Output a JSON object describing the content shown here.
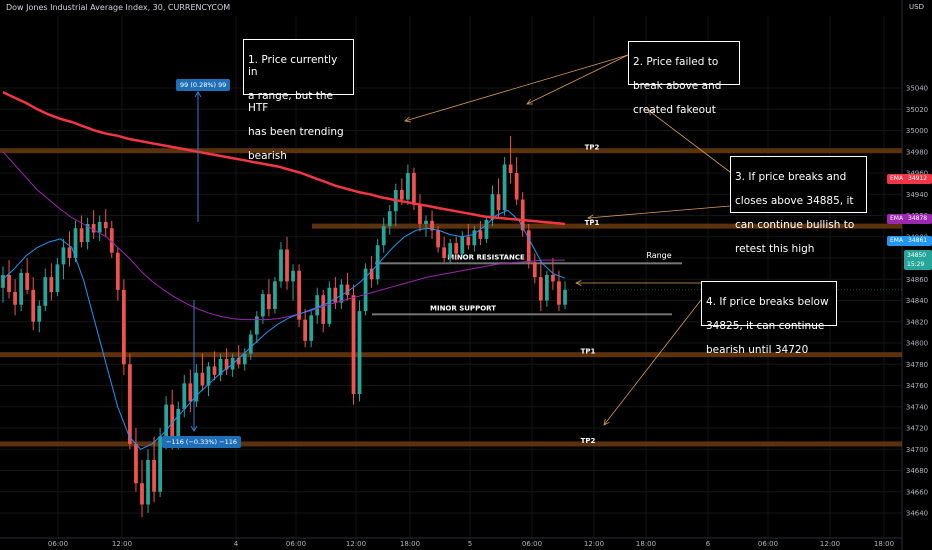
{
  "header": {
    "title": "Dow Jones Industrial Average Index, 30, CURRENCYCOM",
    "currency": "USD"
  },
  "chart_data": {
    "type": "candlestick",
    "y_axis": {
      "range": [
        34625,
        35055
      ],
      "ticks": [
        35040,
        35020,
        35000,
        34980,
        34960,
        34940,
        34920,
        34900,
        34880,
        34860,
        34840,
        34820,
        34800,
        34780,
        34760,
        34740,
        34720,
        34700,
        34680,
        34660,
        34640
      ]
    },
    "x_axis": {
      "labels": [
        "06:00",
        "12:00",
        "4",
        "06:00",
        "12:00",
        "18:00",
        "5",
        "06:00",
        "12:00",
        "18:00",
        "6",
        "06:00",
        "12:00",
        "18:00"
      ]
    },
    "levels": [
      {
        "name": "TP2",
        "value": 34981,
        "kind": "target"
      },
      {
        "name": "TP1",
        "value": 34910,
        "kind": "target"
      },
      {
        "name": "MINOR RESISTANCE",
        "value": 34875,
        "kind": "resistance"
      },
      {
        "name": "MINOR SUPPORT",
        "value": 34827,
        "kind": "support"
      },
      {
        "name": "TP1",
        "value": 34789,
        "kind": "target"
      },
      {
        "name": "TP2",
        "value": 34705,
        "kind": "target"
      }
    ],
    "range_label": "Range",
    "indicators": [
      {
        "name": "EMA",
        "value": "34912",
        "color": "#f23645"
      },
      {
        "name": "EMA",
        "value": "34878",
        "color": "#9c27b0"
      },
      {
        "name": "EMA",
        "value": "34861",
        "color": "#2196f3"
      }
    ],
    "last_price": {
      "value": "34850",
      "time": "15:29",
      "color": "#26a69a"
    },
    "measures": [
      {
        "text": "99 (0.28%) 99"
      },
      {
        "text": "−116 (−0.33%) −116"
      }
    ],
    "candles": [
      {
        "o": 34852,
        "h": 34872,
        "l": 34838,
        "c": 34864
      },
      {
        "o": 34864,
        "h": 34878,
        "l": 34842,
        "c": 34848
      },
      {
        "o": 34848,
        "h": 34860,
        "l": 34826,
        "c": 34836
      },
      {
        "o": 34836,
        "h": 34870,
        "l": 34830,
        "c": 34866
      },
      {
        "o": 34866,
        "h": 34880,
        "l": 34846,
        "c": 34850
      },
      {
        "o": 34850,
        "h": 34862,
        "l": 34812,
        "c": 34820
      },
      {
        "o": 34820,
        "h": 34840,
        "l": 34810,
        "c": 34835
      },
      {
        "o": 34835,
        "h": 34870,
        "l": 34830,
        "c": 34862
      },
      {
        "o": 34862,
        "h": 34875,
        "l": 34840,
        "c": 34848
      },
      {
        "o": 34848,
        "h": 34880,
        "l": 34844,
        "c": 34874
      },
      {
        "o": 34874,
        "h": 34898,
        "l": 34860,
        "c": 34890
      },
      {
        "o": 34890,
        "h": 34905,
        "l": 34872,
        "c": 34880
      },
      {
        "o": 34880,
        "h": 34915,
        "l": 34876,
        "c": 34908
      },
      {
        "o": 34908,
        "h": 34920,
        "l": 34890,
        "c": 34895
      },
      {
        "o": 34895,
        "h": 34918,
        "l": 34888,
        "c": 34912
      },
      {
        "o": 34912,
        "h": 34925,
        "l": 34898,
        "c": 34904
      },
      {
        "o": 34904,
        "h": 34920,
        "l": 34896,
        "c": 34914
      },
      {
        "o": 34914,
        "h": 34926,
        "l": 34900,
        "c": 34908
      },
      {
        "o": 34908,
        "h": 34915,
        "l": 34880,
        "c": 34885
      },
      {
        "o": 34885,
        "h": 34890,
        "l": 34840,
        "c": 34850
      },
      {
        "o": 34850,
        "h": 34860,
        "l": 34770,
        "c": 34780
      },
      {
        "o": 34780,
        "h": 34790,
        "l": 34700,
        "c": 34705
      },
      {
        "o": 34705,
        "h": 34720,
        "l": 34660,
        "c": 34668
      },
      {
        "o": 34668,
        "h": 34690,
        "l": 34636,
        "c": 34648
      },
      {
        "o": 34648,
        "h": 34700,
        "l": 34640,
        "c": 34690
      },
      {
        "o": 34690,
        "h": 34712,
        "l": 34650,
        "c": 34660
      },
      {
        "o": 34660,
        "h": 34720,
        "l": 34655,
        "c": 34712
      },
      {
        "o": 34712,
        "h": 34750,
        "l": 34700,
        "c": 34742
      },
      {
        "o": 34742,
        "h": 34756,
        "l": 34700,
        "c": 34710
      },
      {
        "o": 34710,
        "h": 34745,
        "l": 34700,
        "c": 34738
      },
      {
        "o": 34738,
        "h": 34770,
        "l": 34730,
        "c": 34762
      },
      {
        "o": 34762,
        "h": 34775,
        "l": 34735,
        "c": 34745
      },
      {
        "o": 34745,
        "h": 34780,
        "l": 34740,
        "c": 34772
      },
      {
        "o": 34772,
        "h": 34790,
        "l": 34755,
        "c": 34760
      },
      {
        "o": 34760,
        "h": 34782,
        "l": 34750,
        "c": 34778
      },
      {
        "o": 34778,
        "h": 34792,
        "l": 34765,
        "c": 34770
      },
      {
        "o": 34770,
        "h": 34790,
        "l": 34764,
        "c": 34785
      },
      {
        "o": 34785,
        "h": 34795,
        "l": 34770,
        "c": 34775
      },
      {
        "o": 34775,
        "h": 34790,
        "l": 34768,
        "c": 34786
      },
      {
        "o": 34786,
        "h": 34798,
        "l": 34776,
        "c": 34780
      },
      {
        "o": 34780,
        "h": 34795,
        "l": 34774,
        "c": 34790
      },
      {
        "o": 34790,
        "h": 34812,
        "l": 34784,
        "c": 34808
      },
      {
        "o": 34808,
        "h": 34830,
        "l": 34800,
        "c": 34825
      },
      {
        "o": 34825,
        "h": 34850,
        "l": 34818,
        "c": 34846
      },
      {
        "o": 34846,
        "h": 34860,
        "l": 34825,
        "c": 34832
      },
      {
        "o": 34832,
        "h": 34862,
        "l": 34828,
        "c": 34858
      },
      {
        "o": 34858,
        "h": 34895,
        "l": 34852,
        "c": 34888
      },
      {
        "o": 34888,
        "h": 34900,
        "l": 34850,
        "c": 34858
      },
      {
        "o": 34858,
        "h": 34874,
        "l": 34840,
        "c": 34868
      },
      {
        "o": 34868,
        "h": 34874,
        "l": 34815,
        "c": 34822
      },
      {
        "o": 34822,
        "h": 34832,
        "l": 34796,
        "c": 34802
      },
      {
        "o": 34802,
        "h": 34830,
        "l": 34796,
        "c": 34826
      },
      {
        "o": 34826,
        "h": 34852,
        "l": 34818,
        "c": 34845
      },
      {
        "o": 34845,
        "h": 34850,
        "l": 34810,
        "c": 34818
      },
      {
        "o": 34818,
        "h": 34858,
        "l": 34815,
        "c": 34852
      },
      {
        "o": 34852,
        "h": 34862,
        "l": 34832,
        "c": 34838
      },
      {
        "o": 34838,
        "h": 34860,
        "l": 34832,
        "c": 34855
      },
      {
        "o": 34855,
        "h": 34866,
        "l": 34840,
        "c": 34845
      },
      {
        "o": 34845,
        "h": 34855,
        "l": 34742,
        "c": 34752
      },
      {
        "o": 34752,
        "h": 34840,
        "l": 34745,
        "c": 34830
      },
      {
        "o": 34830,
        "h": 34875,
        "l": 34826,
        "c": 34870
      },
      {
        "o": 34870,
        "h": 34882,
        "l": 34852,
        "c": 34860
      },
      {
        "o": 34860,
        "h": 34898,
        "l": 34855,
        "c": 34892
      },
      {
        "o": 34892,
        "h": 34918,
        "l": 34885,
        "c": 34910
      },
      {
        "o": 34910,
        "h": 34930,
        "l": 34902,
        "c": 34924
      },
      {
        "o": 34924,
        "h": 34950,
        "l": 34910,
        "c": 34944
      },
      {
        "o": 34944,
        "h": 34955,
        "l": 34930,
        "c": 34935
      },
      {
        "o": 34935,
        "h": 34968,
        "l": 34930,
        "c": 34960
      },
      {
        "o": 34960,
        "h": 34965,
        "l": 34925,
        "c": 34930
      },
      {
        "o": 34930,
        "h": 34940,
        "l": 34905,
        "c": 34912
      },
      {
        "o": 34912,
        "h": 34920,
        "l": 34900,
        "c": 34915
      },
      {
        "o": 34915,
        "h": 34925,
        "l": 34898,
        "c": 34906
      },
      {
        "o": 34906,
        "h": 34910,
        "l": 34885,
        "c": 34890
      },
      {
        "o": 34890,
        "h": 34900,
        "l": 34876,
        "c": 34880
      },
      {
        "o": 34880,
        "h": 34898,
        "l": 34875,
        "c": 34894
      },
      {
        "o": 34894,
        "h": 34900,
        "l": 34878,
        "c": 34884
      },
      {
        "o": 34884,
        "h": 34905,
        "l": 34880,
        "c": 34900
      },
      {
        "o": 34900,
        "h": 34912,
        "l": 34888,
        "c": 34892
      },
      {
        "o": 34892,
        "h": 34910,
        "l": 34886,
        "c": 34906
      },
      {
        "o": 34906,
        "h": 34915,
        "l": 34892,
        "c": 34898
      },
      {
        "o": 34898,
        "h": 34920,
        "l": 34894,
        "c": 34916
      },
      {
        "o": 34916,
        "h": 34948,
        "l": 34910,
        "c": 34940
      },
      {
        "o": 34940,
        "h": 34955,
        "l": 34918,
        "c": 34925
      },
      {
        "o": 34925,
        "h": 34975,
        "l": 34920,
        "c": 34968
      },
      {
        "o": 34968,
        "h": 34995,
        "l": 34950,
        "c": 34960
      },
      {
        "o": 34960,
        "h": 34975,
        "l": 34930,
        "c": 34935
      },
      {
        "o": 34935,
        "h": 34942,
        "l": 34900,
        "c": 34906
      },
      {
        "o": 34906,
        "h": 34912,
        "l": 34870,
        "c": 34876
      },
      {
        "o": 34876,
        "h": 34884,
        "l": 34856,
        "c": 34862
      },
      {
        "o": 34862,
        "h": 34878,
        "l": 34830,
        "c": 34840
      },
      {
        "o": 34840,
        "h": 34868,
        "l": 34834,
        "c": 34864
      },
      {
        "o": 34864,
        "h": 34880,
        "l": 34850,
        "c": 34858
      },
      {
        "o": 34858,
        "h": 34868,
        "l": 34830,
        "c": 34836
      },
      {
        "o": 34836,
        "h": 34858,
        "l": 34832,
        "c": 34850
      }
    ],
    "ema_red": [
      35036,
      35031,
      35026,
      35020,
      35015,
      35011,
      35008,
      35004,
      35000,
      34997,
      34995,
      34992,
      34990,
      34988,
      34986,
      34984,
      34982,
      34980,
      34978,
      34976,
      34974,
      34972,
      34970,
      34968,
      34966,
      34963,
      34960,
      34956,
      34952,
      34948,
      34945,
      34942,
      34940,
      34937,
      34935,
      34933,
      34931,
      34929,
      34927,
      34925,
      34923,
      34921,
      34919,
      34918,
      34917,
      34916,
      34915,
      34914,
      34913,
      34912
    ],
    "ema_purple": [
      34980,
      34968,
      34956,
      34944,
      34935,
      34926,
      34918,
      34912,
      34906,
      34900,
      34890,
      34880,
      34868,
      34858,
      34850,
      34843,
      34837,
      34832,
      34828,
      34825,
      34823,
      34822,
      34822,
      34822,
      34823,
      34825,
      34828,
      34831,
      34835,
      34838,
      34841,
      34844,
      34847,
      34850,
      34853,
      34856,
      34859,
      34862,
      34864,
      34866,
      34868,
      34870,
      34872,
      34874,
      34875,
      34876,
      34877,
      34878,
      34878,
      34878
    ],
    "ema_blue": [
      34860,
      34870,
      34882,
      34890,
      34895,
      34898,
      34890,
      34860,
      34820,
      34780,
      34740,
      34712,
      34700,
      34705,
      34715,
      34728,
      34740,
      34752,
      34762,
      34772,
      34780,
      34790,
      34800,
      34810,
      34818,
      34824,
      34828,
      34832,
      34836,
      34842,
      34848,
      34856,
      34866,
      34878,
      34890,
      34900,
      34906,
      34908,
      34906,
      34902,
      34900,
      34902,
      34910,
      34920,
      34925,
      34915,
      34895,
      34875,
      34865,
      34861
    ]
  },
  "annotations": [
    {
      "lines": [
        "1. Price currently in",
        "a range, but the HTF",
        "has been trending",
        "bearish"
      ]
    },
    {
      "lines": [
        "2. Price failed to",
        "break above and",
        "created fakeout"
      ]
    },
    {
      "lines": [
        "3. If price breaks and",
        "closes above 34885, it",
        "can continue bullish to",
        "retest this high"
      ]
    },
    {
      "lines": [
        "4. If price breaks below",
        "34825, it can continue",
        "bearish until 34720"
      ]
    }
  ]
}
